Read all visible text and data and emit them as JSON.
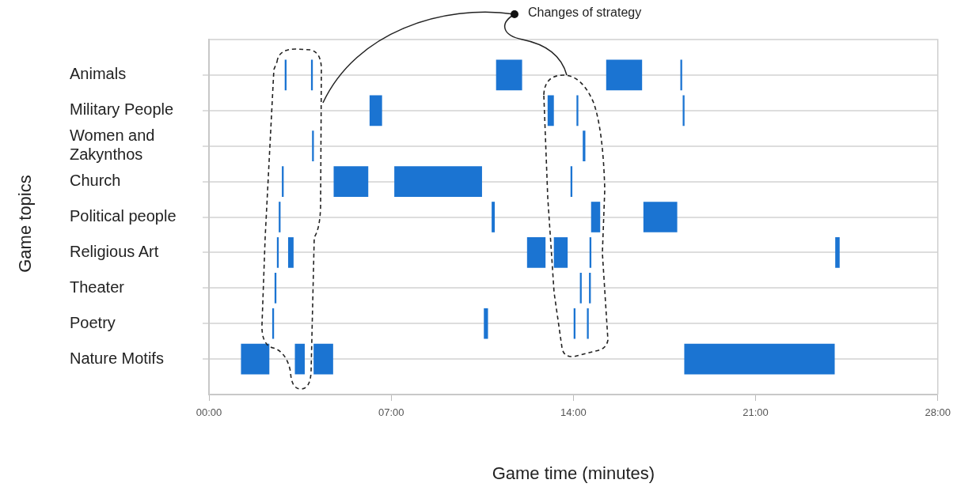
{
  "chart_data": {
    "type": "bar",
    "orientation": "horizontal",
    "xlabel": "Game time (minutes)",
    "ylabel": "Game topics",
    "categories": [
      "Animals",
      "Military People",
      "Women and Zakynthos",
      "Church",
      "Political people",
      "Religious Art",
      "Theater",
      "Poetry",
      "Nature Motifs"
    ],
    "series": [
      {
        "color": "#1b74d2",
        "base": [
          2.92,
          6.18,
          3.97,
          2.81,
          2.69,
          2.62,
          2.53,
          2.44,
          1.24
        ],
        "values": [
          0.05,
          0.46,
          0.05,
          0.05,
          0.05,
          0.05,
          0.05,
          0.05,
          1.07
        ]
      },
      {
        "color": "#1b74d2",
        "base": [
          3.93,
          13.02,
          14.37,
          4.8,
          10.87,
          3.05,
          14.26,
          10.57,
          3.31
        ],
        "values": [
          0.05,
          0.22,
          0.08,
          1.31,
          0.1,
          0.19,
          0.05,
          0.14,
          0.36
        ]
      },
      {
        "color": "#1b74d2",
        "base": [
          11.04,
          14.13,
          null,
          7.13,
          14.69,
          12.23,
          14.61,
          14.02,
          4.03
        ],
        "values": [
          0.98,
          0.05,
          null,
          3.35,
          0.33,
          0.69,
          0.05,
          0.05,
          0.73
        ]
      },
      {
        "color": "#1b74d2",
        "base": [
          15.27,
          18.21,
          null,
          13.9,
          16.7,
          13.26,
          null,
          14.53,
          18.27
        ],
        "values": [
          1.36,
          0.05,
          null,
          0.05,
          1.28,
          0.51,
          null,
          0.05,
          5.76
        ]
      },
      {
        "color": "#1b74d2",
        "base": [
          18.12,
          null,
          null,
          null,
          null,
          14.63,
          null,
          null,
          null
        ],
        "values": [
          0.05,
          null,
          null,
          null,
          null,
          0.05,
          null,
          null,
          null
        ]
      },
      {
        "color": "#1b74d2",
        "base": [
          null,
          null,
          null,
          null,
          null,
          24.07,
          null,
          null,
          null
        ],
        "values": [
          null,
          null,
          null,
          null,
          null,
          0.15,
          null,
          null,
          null
        ]
      }
    ],
    "xlim": [
      0,
      28
    ],
    "xticks": [
      {
        "value": 0,
        "label": "00:00"
      },
      {
        "value": 7,
        "label": "07:00"
      },
      {
        "value": 14,
        "label": "14:00"
      },
      {
        "value": 21,
        "label": "21:00"
      },
      {
        "value": 28,
        "label": "28:00"
      }
    ],
    "grid": "y",
    "annotations": [
      "Changes of strategy"
    ]
  }
}
